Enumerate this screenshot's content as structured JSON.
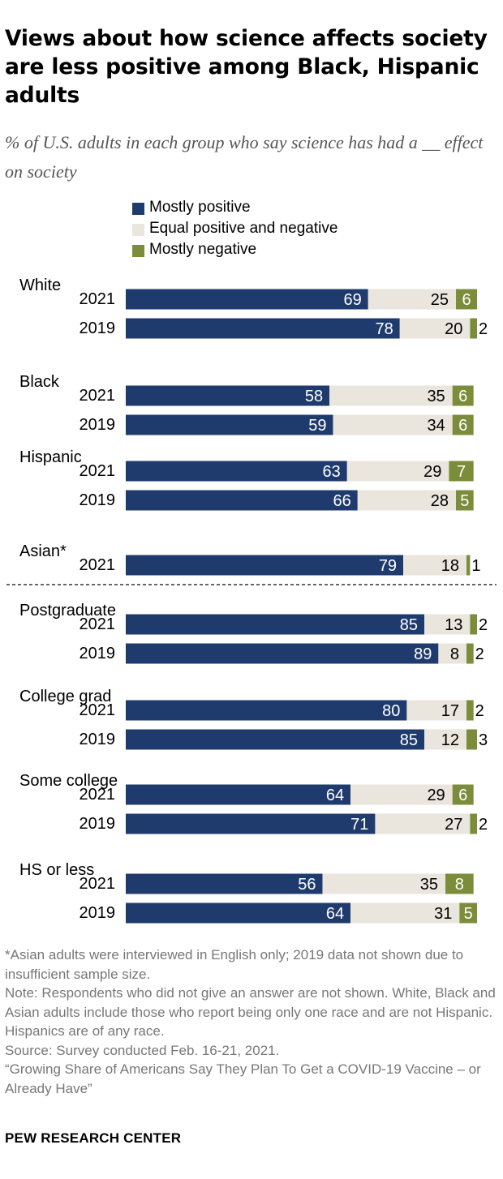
{
  "title": "Views about how science affects society are less positive among Black, Hispanic adults",
  "subtitle": "% of U.S. adults in each group who say science has had a __ effect on society",
  "colors": {
    "positive": "#1f3b6e",
    "equal": "#eae6de",
    "negative": "#7b8c3a"
  },
  "chart_data": {
    "type": "bar",
    "orientation": "horizontal",
    "stacked": true,
    "legend": [
      "Mostly positive",
      "Equal positive and negative",
      "Mostly negative"
    ],
    "legend_placement": "top",
    "groups": [
      {
        "label": "White",
        "rows": [
          {
            "year": "2021",
            "values": [
              69,
              25,
              6
            ]
          },
          {
            "year": "2019",
            "values": [
              78,
              20,
              2
            ]
          }
        ]
      },
      {
        "label": "Black",
        "rows": [
          {
            "year": "2021",
            "values": [
              58,
              35,
              6
            ]
          },
          {
            "year": "2019",
            "values": [
              59,
              34,
              6
            ]
          }
        ]
      },
      {
        "label": "Hispanic",
        "rows": [
          {
            "year": "2021",
            "values": [
              63,
              29,
              7
            ]
          },
          {
            "year": "2019",
            "values": [
              66,
              28,
              5
            ]
          }
        ]
      },
      {
        "label": "Asian*",
        "rows": [
          {
            "year": "2021",
            "values": [
              79,
              18,
              1
            ]
          }
        ]
      },
      {
        "label": "Postgraduate",
        "rows": [
          {
            "year": "2021",
            "values": [
              85,
              13,
              2
            ]
          },
          {
            "year": "2019",
            "values": [
              89,
              8,
              2
            ]
          }
        ]
      },
      {
        "label": "College grad",
        "rows": [
          {
            "year": "2021",
            "values": [
              80,
              17,
              2
            ]
          },
          {
            "year": "2019",
            "values": [
              85,
              12,
              3
            ]
          }
        ]
      },
      {
        "label": "Some college",
        "rows": [
          {
            "year": "2021",
            "values": [
              64,
              29,
              6
            ]
          },
          {
            "year": "2019",
            "values": [
              71,
              27,
              2
            ]
          }
        ]
      },
      {
        "label": "HS or less",
        "rows": [
          {
            "year": "2021",
            "values": [
              56,
              35,
              8
            ]
          },
          {
            "year": "2019",
            "values": [
              64,
              31,
              5
            ]
          }
        ]
      }
    ]
  },
  "notes": [
    "*Asian adults were interviewed in English only; 2019 data not shown due to insufficient sample size.",
    "Note: Respondents who did not give an answer are not shown. White, Black and Asian adults include those who report being only one race and are not Hispanic. Hispanics are of any race.",
    "Source: Survey conducted Feb. 16-21, 2021.",
    "“Growing Share of Americans Say They Plan To Get a COVID-19 Vaccine – or Already Have”"
  ],
  "brand": "PEW RESEARCH CENTER"
}
